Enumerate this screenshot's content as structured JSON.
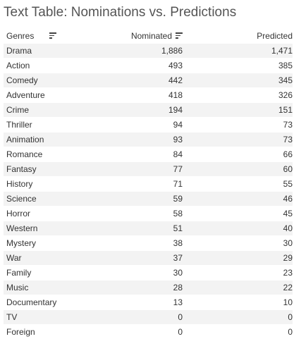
{
  "title": "Text Table: Nominations vs. Predictions",
  "columns": {
    "genres": "Genres",
    "nominated": "Nominated",
    "predicted": "Predicted"
  },
  "rows": [
    {
      "genre": "Drama",
      "nominated": "1,886",
      "predicted": "1,471"
    },
    {
      "genre": "Action",
      "nominated": "493",
      "predicted": "385"
    },
    {
      "genre": "Comedy",
      "nominated": "442",
      "predicted": "345"
    },
    {
      "genre": "Adventure",
      "nominated": "418",
      "predicted": "326"
    },
    {
      "genre": "Crime",
      "nominated": "194",
      "predicted": "151"
    },
    {
      "genre": "Thriller",
      "nominated": "94",
      "predicted": "73"
    },
    {
      "genre": "Animation",
      "nominated": "93",
      "predicted": "73"
    },
    {
      "genre": "Romance",
      "nominated": "84",
      "predicted": "66"
    },
    {
      "genre": "Fantasy",
      "nominated": "77",
      "predicted": "60"
    },
    {
      "genre": "History",
      "nominated": "71",
      "predicted": "55"
    },
    {
      "genre": "Science",
      "nominated": "59",
      "predicted": "46"
    },
    {
      "genre": "Horror",
      "nominated": "58",
      "predicted": "45"
    },
    {
      "genre": "Western",
      "nominated": "51",
      "predicted": "40"
    },
    {
      "genre": "Mystery",
      "nominated": "38",
      "predicted": "30"
    },
    {
      "genre": "War",
      "nominated": "37",
      "predicted": "29"
    },
    {
      "genre": "Family",
      "nominated": "30",
      "predicted": "23"
    },
    {
      "genre": "Music",
      "nominated": "28",
      "predicted": "22"
    },
    {
      "genre": "Documentary",
      "nominated": "13",
      "predicted": "10"
    },
    {
      "genre": "TV",
      "nominated": "0",
      "predicted": "0"
    },
    {
      "genre": "Foreign",
      "nominated": "0",
      "predicted": "0"
    }
  ],
  "icons": {
    "genres_sort": "sort-icon",
    "nominated_sort": "sort-descending-icon"
  },
  "colors": {
    "stripe": "#f3f3f3",
    "text": "#333333",
    "title": "#555555"
  }
}
